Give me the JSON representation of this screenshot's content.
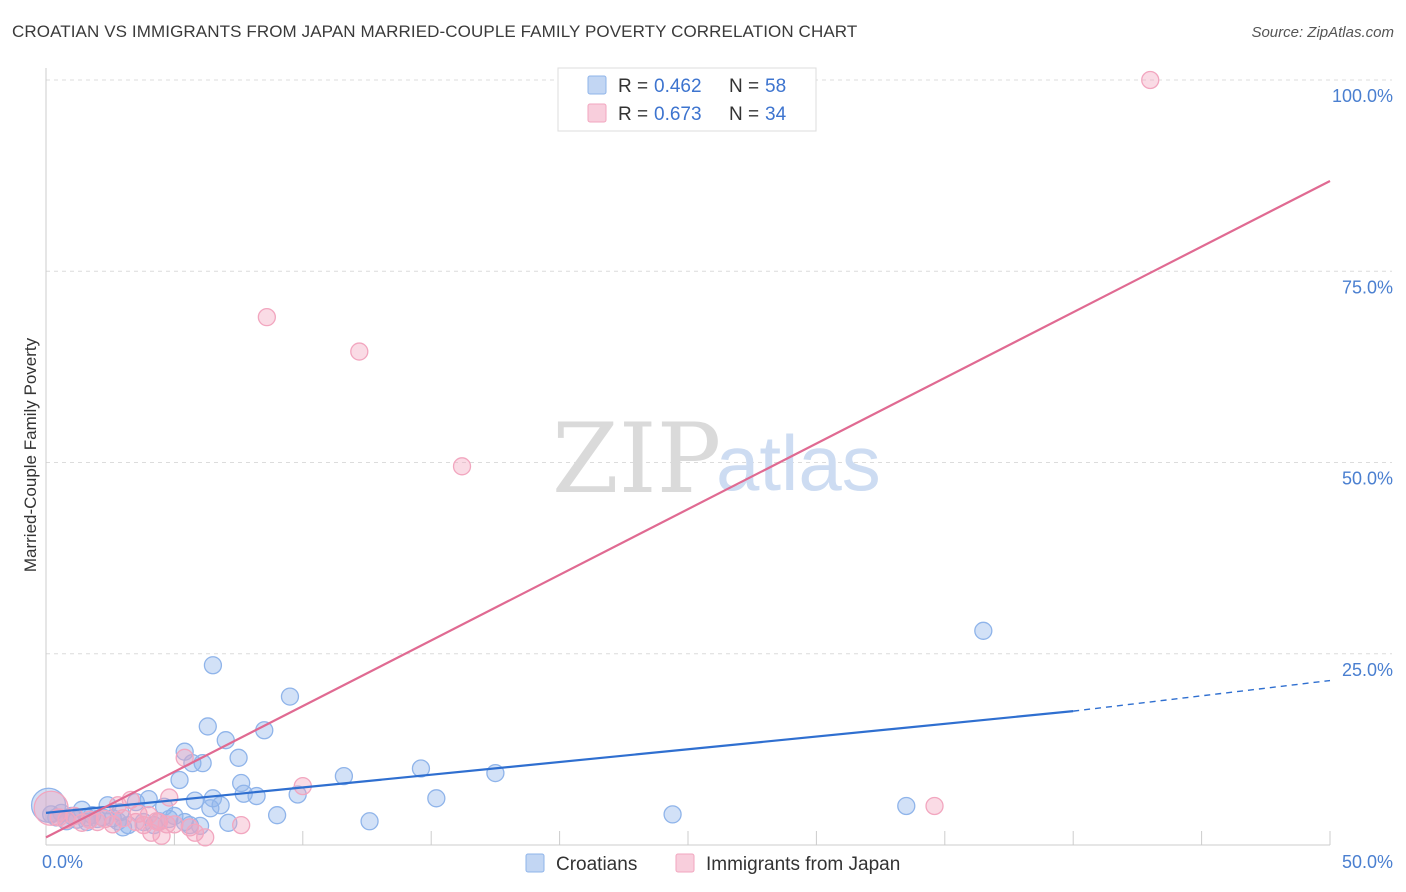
{
  "title": "CROATIAN VS IMMIGRANTS FROM JAPAN MARRIED-COUPLE FAMILY POVERTY CORRELATION CHART",
  "source": "Source: ZipAtlas.com",
  "watermark": {
    "zip": "ZIP",
    "atlas": "atlas"
  },
  "legend": {
    "rows": [
      {
        "r_label": "R = ",
        "r_value": "0.462",
        "n_label": "N = ",
        "n_value": "58",
        "color": "#8fb4ea"
      },
      {
        "r_label": "R = ",
        "r_value": "0.673",
        "n_label": "N = ",
        "n_value": "34",
        "color": "#f2a6bf"
      }
    ]
  },
  "bottom_legend": [
    "Croatians",
    "Immigrants from Japan"
  ],
  "chart_data": {
    "type": "scatter",
    "title": "CROATIAN VS IMMIGRANTS FROM JAPAN MARRIED-COUPLE FAMILY POVERTY CORRELATION CHART",
    "xlabel": "",
    "ylabel": "Married-Couple Family Poverty",
    "xlim": [
      0,
      50
    ],
    "ylim": [
      0,
      100
    ],
    "x_tick_labels": [
      "0.0%",
      "50.0%"
    ],
    "y_tick_labels": [
      "25.0%",
      "50.0%",
      "75.0%",
      "100.0%"
    ],
    "y_ticks": [
      25,
      50,
      75,
      100
    ],
    "grid": true,
    "legend_position": "top-center",
    "series": [
      {
        "name": "Croatians",
        "color": "#8fb4ea",
        "line_color": "#2f6fd0",
        "trend": {
          "x": [
            0,
            40,
            50
          ],
          "y": [
            4.2,
            17.5,
            21.5
          ],
          "solid_until": 40
        },
        "points": [
          {
            "x": 0.1,
            "y": 5.2,
            "big": true
          },
          {
            "x": 0.2,
            "y": 4.0
          },
          {
            "x": 0.4,
            "y": 3.6
          },
          {
            "x": 0.6,
            "y": 4.2
          },
          {
            "x": 0.8,
            "y": 3.1
          },
          {
            "x": 1.0,
            "y": 3.8
          },
          {
            "x": 1.2,
            "y": 3.3
          },
          {
            "x": 1.4,
            "y": 4.6
          },
          {
            "x": 1.6,
            "y": 3.0
          },
          {
            "x": 1.8,
            "y": 3.9
          },
          {
            "x": 2.0,
            "y": 3.4
          },
          {
            "x": 2.2,
            "y": 3.6
          },
          {
            "x": 2.4,
            "y": 5.2
          },
          {
            "x": 2.6,
            "y": 3.5
          },
          {
            "x": 2.8,
            "y": 3.1
          },
          {
            "x": 3.0,
            "y": 2.3
          },
          {
            "x": 3.2,
            "y": 2.6
          },
          {
            "x": 3.5,
            "y": 5.6
          },
          {
            "x": 3.8,
            "y": 3.0
          },
          {
            "x": 4.0,
            "y": 6.0
          },
          {
            "x": 4.2,
            "y": 2.6
          },
          {
            "x": 4.4,
            "y": 3.1
          },
          {
            "x": 4.6,
            "y": 5.0
          },
          {
            "x": 4.8,
            "y": 3.4
          },
          {
            "x": 5.0,
            "y": 3.8
          },
          {
            "x": 5.2,
            "y": 8.5
          },
          {
            "x": 5.4,
            "y": 12.2
          },
          {
            "x": 5.6,
            "y": 2.6
          },
          {
            "x": 5.4,
            "y": 3.0
          },
          {
            "x": 5.8,
            "y": 5.8
          },
          {
            "x": 6.0,
            "y": 2.5
          },
          {
            "x": 6.1,
            "y": 10.7
          },
          {
            "x": 5.7,
            "y": 10.7
          },
          {
            "x": 6.3,
            "y": 15.5
          },
          {
            "x": 6.4,
            "y": 4.8
          },
          {
            "x": 6.5,
            "y": 6.1
          },
          {
            "x": 6.5,
            "y": 23.5
          },
          {
            "x": 6.8,
            "y": 5.2
          },
          {
            "x": 7.0,
            "y": 13.7
          },
          {
            "x": 7.1,
            "y": 2.9
          },
          {
            "x": 7.5,
            "y": 11.4
          },
          {
            "x": 7.6,
            "y": 8.1
          },
          {
            "x": 7.7,
            "y": 6.7
          },
          {
            "x": 8.2,
            "y": 6.4
          },
          {
            "x": 8.5,
            "y": 15.0
          },
          {
            "x": 9.0,
            "y": 3.9
          },
          {
            "x": 9.5,
            "y": 19.4
          },
          {
            "x": 9.8,
            "y": 6.6
          },
          {
            "x": 11.6,
            "y": 9.0
          },
          {
            "x": 12.6,
            "y": 3.1
          },
          {
            "x": 14.6,
            "y": 10.0
          },
          {
            "x": 15.2,
            "y": 6.1
          },
          {
            "x": 17.5,
            "y": 9.4
          },
          {
            "x": 24.4,
            "y": 4.0
          },
          {
            "x": 33.5,
            "y": 5.1
          },
          {
            "x": 36.5,
            "y": 28.0
          },
          {
            "x": 1.6,
            "y": 3.6
          },
          {
            "x": 2.9,
            "y": 4.3
          }
        ]
      },
      {
        "name": "Immigrants from Japan",
        "color": "#f2a6bf",
        "line_color": "#e06a92",
        "trend": {
          "x": [
            0,
            50
          ],
          "y": [
            1.0,
            86.8
          ],
          "solid_until": 50
        },
        "points": [
          {
            "x": 0.2,
            "y": 4.8,
            "big": true
          },
          {
            "x": 0.5,
            "y": 3.6
          },
          {
            "x": 0.8,
            "y": 3.3
          },
          {
            "x": 1.1,
            "y": 3.8
          },
          {
            "x": 1.4,
            "y": 2.9
          },
          {
            "x": 1.7,
            "y": 3.3
          },
          {
            "x": 2.0,
            "y": 3.0
          },
          {
            "x": 2.3,
            "y": 3.4
          },
          {
            "x": 2.6,
            "y": 2.7
          },
          {
            "x": 2.8,
            "y": 5.2
          },
          {
            "x": 3.0,
            "y": 3.5
          },
          {
            "x": 3.3,
            "y": 5.9
          },
          {
            "x": 3.5,
            "y": 3.0
          },
          {
            "x": 3.6,
            "y": 4.1
          },
          {
            "x": 3.8,
            "y": 2.6
          },
          {
            "x": 4.0,
            "y": 3.9
          },
          {
            "x": 4.1,
            "y": 1.6
          },
          {
            "x": 4.3,
            "y": 3.1
          },
          {
            "x": 4.4,
            "y": 3.0
          },
          {
            "x": 4.5,
            "y": 1.2
          },
          {
            "x": 4.7,
            "y": 2.7
          },
          {
            "x": 4.8,
            "y": 6.2
          },
          {
            "x": 5.0,
            "y": 2.7
          },
          {
            "x": 5.4,
            "y": 11.4
          },
          {
            "x": 5.6,
            "y": 2.3
          },
          {
            "x": 5.8,
            "y": 1.6
          },
          {
            "x": 6.2,
            "y": 1.0
          },
          {
            "x": 7.6,
            "y": 2.6
          },
          {
            "x": 8.6,
            "y": 69.0
          },
          {
            "x": 10.0,
            "y": 7.7
          },
          {
            "x": 12.2,
            "y": 64.5
          },
          {
            "x": 16.2,
            "y": 49.5
          },
          {
            "x": 34.6,
            "y": 5.1
          },
          {
            "x": 43.0,
            "y": 100.0
          }
        ]
      }
    ]
  }
}
